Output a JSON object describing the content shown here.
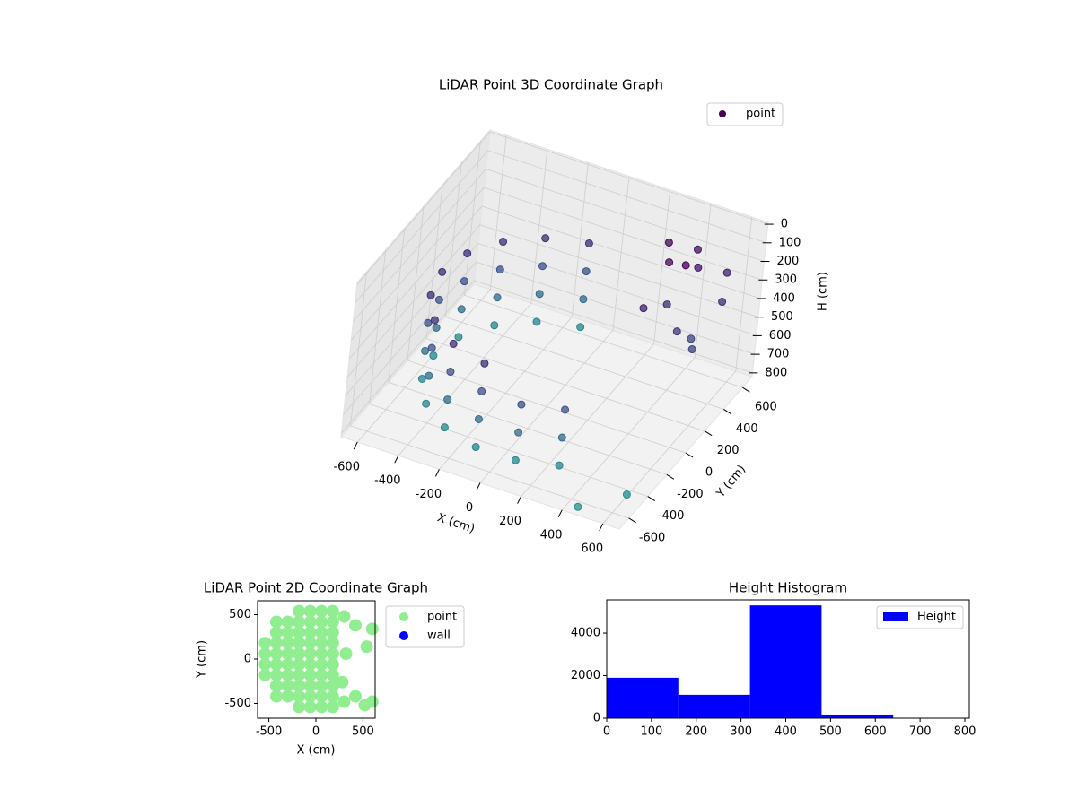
{
  "chart_data": [
    {
      "type": "scatter3d",
      "title": "LiDAR Point 3D Coordinate Graph",
      "xlabel": "X (cm)",
      "ylabel": "Y (cm)",
      "zlabel": "H (cm)",
      "xlim": [
        -680,
        680
      ],
      "ylim": [
        -700,
        700
      ],
      "zlim": [
        820,
        -10
      ],
      "xticks": [
        -600,
        -400,
        -200,
        0,
        200,
        400,
        600
      ],
      "yticks": [
        -600,
        -400,
        -200,
        0,
        200,
        400,
        600
      ],
      "zticks": [
        0,
        100,
        200,
        300,
        400,
        500,
        600,
        700,
        800
      ],
      "colormap": "viridis",
      "grid": true,
      "legend": "upper right",
      "series": [
        {
          "name": "point",
          "x": [
            -97,
            -97,
            -97,
            -97,
            -280,
            -280,
            -280,
            -280,
            -429,
            -429,
            -429,
            -429,
            -526,
            -526,
            -526,
            -526,
            -560,
            -560,
            -560,
            -560,
            -526,
            -526,
            -526,
            -526,
            -429,
            -429,
            -429,
            -429,
            -280,
            -280,
            -280,
            -280,
            -97,
            -97,
            -97,
            -97,
            97,
            97,
            97,
            280,
            280,
            280,
            350,
            450,
            550,
            400,
            500,
            600,
            350,
            450,
            550,
            600,
            300,
            400,
            450,
            600
          ],
          "y": [
            551,
            551,
            551,
            551,
            485,
            485,
            485,
            485,
            360,
            360,
            360,
            360,
            192,
            192,
            192,
            192,
            0,
            0,
            0,
            0,
            -192,
            -192,
            -192,
            -192,
            -360,
            -360,
            -360,
            -360,
            -485,
            -485,
            -485,
            -485,
            -551,
            -551,
            -551,
            -551,
            -551,
            -551,
            -551,
            -485,
            -485,
            -485,
            400,
            500,
            600,
            300,
            200,
            450,
            150,
            350,
            250,
            150,
            500,
            600,
            -640,
            -450
          ],
          "z": [
            300,
            450,
            600,
            750,
            300,
            450,
            600,
            750,
            300,
            450,
            600,
            750,
            300,
            450,
            600,
            750,
            300,
            450,
            600,
            750,
            300,
            450,
            600,
            750,
            300,
            450,
            600,
            750,
            300,
            450,
            600,
            750,
            300,
            450,
            600,
            750,
            450,
            600,
            750,
            450,
            600,
            750,
            150,
            200,
            250,
            300,
            350,
            300,
            250,
            100,
            400,
            380,
            120,
            180,
            820,
            810
          ]
        }
      ]
    },
    {
      "type": "scatter",
      "title": "LiDAR Point 2D Coordinate Graph",
      "xlabel": "X (cm)",
      "ylabel": "Y (cm)",
      "xlim": [
        -620,
        630
      ],
      "ylim": [
        -667,
        657
      ],
      "xticks": [
        -500,
        0,
        500
      ],
      "yticks": [
        -500,
        0,
        500
      ],
      "legend": "outside upper right",
      "series": [
        {
          "name": "point",
          "color": "#90ee90",
          "x": [
            -540,
            -540,
            -540,
            -540,
            -420,
            -420,
            -420,
            -420,
            -420,
            -420,
            -420,
            -420,
            -300,
            -300,
            -300,
            -300,
            -300,
            -300,
            -300,
            -300,
            -180,
            -180,
            -180,
            -180,
            -180,
            -180,
            -180,
            -180,
            -180,
            -180,
            -60,
            -60,
            -60,
            -60,
            -60,
            -60,
            -60,
            -60,
            -60,
            -60,
            60,
            60,
            60,
            60,
            60,
            60,
            60,
            60,
            60,
            60,
            180,
            180,
            180,
            180,
            180,
            180,
            180,
            180,
            180,
            180,
            300,
            300,
            420,
            540,
            600,
            420,
            520,
            600,
            280,
            320
          ],
          "y": [
            -180,
            -60,
            60,
            180,
            -420,
            -300,
            -180,
            -60,
            60,
            180,
            300,
            420,
            -420,
            -300,
            -180,
            -60,
            60,
            180,
            300,
            420,
            -540,
            -420,
            -300,
            -180,
            -60,
            60,
            180,
            300,
            420,
            540,
            -540,
            -420,
            -300,
            -180,
            -60,
            60,
            180,
            300,
            420,
            540,
            -540,
            -420,
            -300,
            -180,
            -60,
            60,
            180,
            300,
            420,
            540,
            -540,
            -420,
            -300,
            -180,
            -60,
            60,
            180,
            300,
            420,
            540,
            480,
            -480,
            380,
            140,
            340,
            -420,
            -520,
            -480,
            -260,
            60
          ]
        },
        {
          "name": "wall",
          "color": "#0000ff",
          "x": [],
          "y": []
        }
      ]
    },
    {
      "type": "histogram",
      "title": "Height Histogram",
      "color": "#0000ff",
      "series_name": "Height",
      "legend": "upper right",
      "bins": [
        0,
        160,
        320,
        480,
        640,
        800
      ],
      "counts": [
        1900,
        1100,
        5300,
        170,
        10
      ],
      "xlim": [
        0,
        810
      ],
      "ylim": [
        0,
        5560
      ],
      "xticks": [
        0,
        100,
        200,
        300,
        400,
        500,
        600,
        700,
        800
      ],
      "yticks": [
        0,
        2000,
        4000
      ]
    }
  ]
}
